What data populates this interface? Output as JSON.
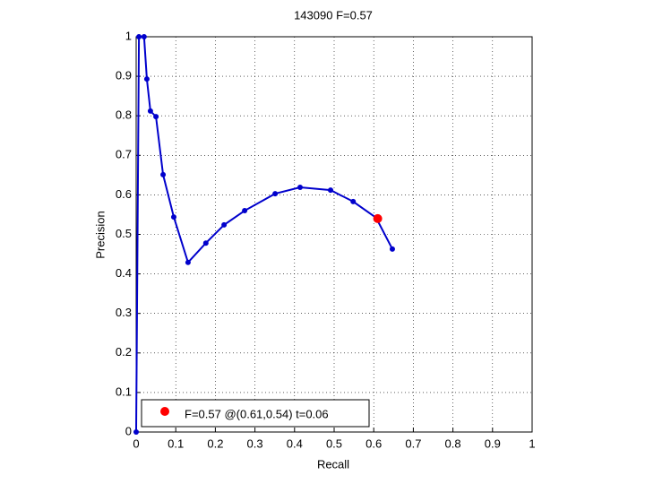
{
  "chart_data": {
    "type": "line",
    "title": "143090 F=0.57",
    "x_label": "Recall",
    "y_label": "Precision",
    "xlim": [
      0,
      1
    ],
    "ylim": [
      0,
      1
    ],
    "xticks": [
      0,
      0.1,
      0.2,
      0.3,
      0.4,
      0.5,
      0.6,
      0.7,
      0.8,
      0.9,
      1
    ],
    "yticks": [
      0,
      0.1,
      0.2,
      0.3,
      0.4,
      0.5,
      0.6,
      0.7,
      0.8,
      0.9,
      1
    ],
    "grid": true,
    "legend": "lower left",
    "series": [
      {
        "color": "#0000cc",
        "x": [
          0,
          0.007,
          0.02,
          0.027,
          0.036,
          0.05,
          0.068,
          0.095,
          0.131,
          0.176,
          0.222,
          0.274,
          0.351,
          0.414,
          0.491,
          0.548,
          0.606,
          0.647
        ],
        "values": [
          0,
          1,
          1,
          0.893,
          0.812,
          0.798,
          0.651,
          0.544,
          0.429,
          0.478,
          0.524,
          0.56,
          0.603,
          0.619,
          0.612,
          0.583,
          0.542,
          0.463
        ]
      },
      {
        "name": "F=0.57 @(0.61,0.54) t=0.06",
        "color": "#ff0000",
        "x": [
          0.61
        ],
        "values": [
          0.54
        ]
      }
    ]
  }
}
